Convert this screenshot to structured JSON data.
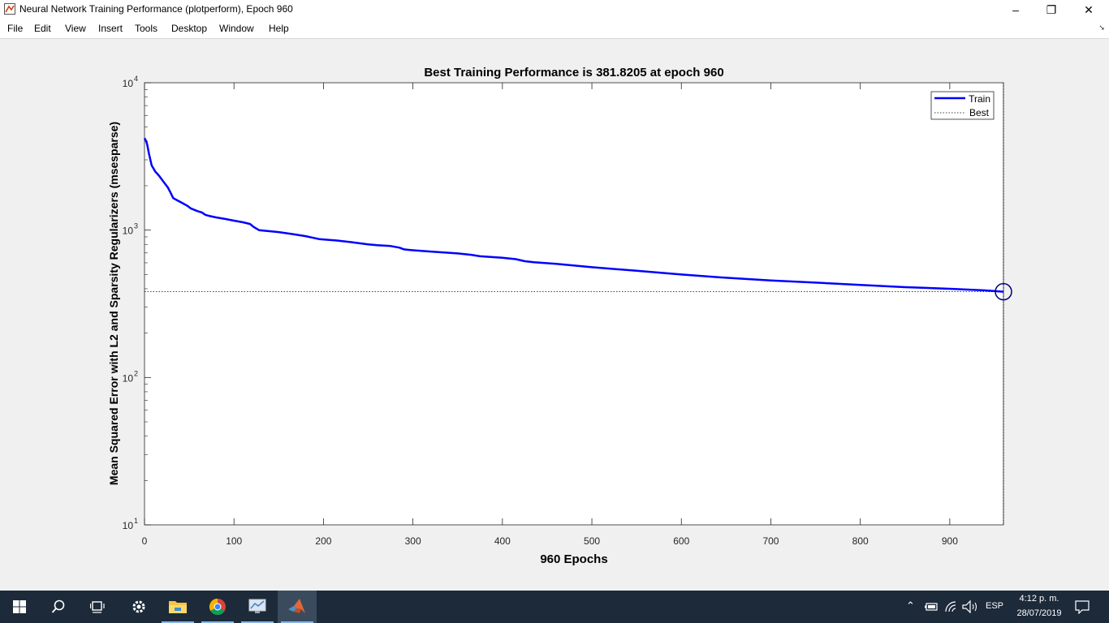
{
  "window": {
    "title": "Neural Network Training Performance (plotperform), Epoch 960",
    "minimize_label": "–",
    "restore_label": "❐",
    "close_label": "✕"
  },
  "menu": [
    "File",
    "Edit",
    "View",
    "Insert",
    "Tools",
    "Desktop",
    "Window",
    "Help"
  ],
  "chart_data": {
    "type": "line",
    "title": "Best Training Performance is 381.8205 at epoch 960",
    "xlabel": "960 Epochs",
    "ylabel": "Mean Squared Error with L2 and Sparsity Regularizers  (msesparse)",
    "xlim": [
      0,
      960
    ],
    "ylim": [
      10,
      10000
    ],
    "yscale": "log",
    "xticks": [
      0,
      100,
      200,
      300,
      400,
      500,
      600,
      700,
      800,
      900
    ],
    "yticks": [
      10,
      100,
      1000,
      10000
    ],
    "ytick_labels": [
      {
        "base": "10",
        "exp": "1"
      },
      {
        "base": "10",
        "exp": "2"
      },
      {
        "base": "10",
        "exp": "3"
      },
      {
        "base": "10",
        "exp": "4"
      }
    ],
    "legend": {
      "position": "top-right",
      "entries": [
        "Train",
        "Best"
      ]
    },
    "series": [
      {
        "name": "Train",
        "color": "#0000ff",
        "x": [
          0,
          2,
          3,
          5,
          8,
          12,
          16,
          22,
          26,
          29,
          32,
          36,
          42,
          48,
          52,
          56,
          60,
          64,
          68,
          72,
          80,
          90,
          100,
          110,
          118,
          122,
          128,
          135,
          150,
          165,
          180,
          195,
          205,
          215,
          230,
          250,
          260,
          275,
          285,
          290,
          295,
          300,
          320,
          335,
          350,
          365,
          375,
          400,
          415,
          425,
          435,
          460,
          500,
          550,
          600,
          650,
          700,
          750,
          800,
          850,
          900,
          940,
          960
        ],
        "y": [
          4200,
          4000,
          3800,
          3300,
          2750,
          2500,
          2350,
          2100,
          1950,
          1800,
          1650,
          1600,
          1530,
          1460,
          1400,
          1370,
          1340,
          1320,
          1270,
          1250,
          1220,
          1190,
          1160,
          1130,
          1100,
          1050,
          1000,
          990,
          970,
          940,
          910,
          870,
          860,
          850,
          830,
          800,
          790,
          780,
          760,
          740,
          735,
          730,
          715,
          705,
          695,
          680,
          665,
          650,
          635,
          615,
          605,
          590,
          560,
          530,
          500,
          475,
          455,
          440,
          425,
          410,
          400,
          390,
          381.8205
        ]
      },
      {
        "name": "Best",
        "color": "#000000",
        "y_value": 381.8205
      }
    ],
    "best_point": {
      "x": 960,
      "y": 381.8205,
      "color": "#000080"
    }
  },
  "taskbar": {
    "language": "ESP",
    "time": "4:12 p. m.",
    "date": "28/07/2019"
  }
}
